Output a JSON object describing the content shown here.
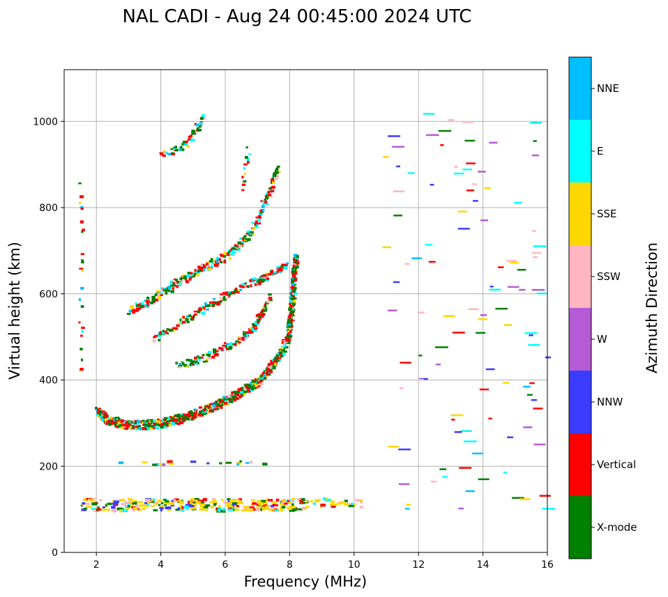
{
  "chart_data": {
    "type": "scatter",
    "title": "NAL CADI - Aug 24 00:45:00 2024 UTC",
    "xlabel": "Frequency (MHz)",
    "ylabel": "Virtual height (km)",
    "xlim": [
      1,
      16
    ],
    "ylim": [
      0,
      1120
    ],
    "xticks": [
      2,
      4,
      6,
      8,
      10,
      12,
      14,
      16
    ],
    "xtick_labels": [
      "2",
      "4",
      "6",
      "8",
      "10",
      "12",
      "14",
      "16"
    ],
    "yticks": [
      0,
      200,
      400,
      600,
      800,
      1000
    ],
    "ytick_labels": [
      "0",
      "200",
      "400",
      "600",
      "800",
      "1000"
    ],
    "grid": true,
    "colorbar": {
      "label": "Azimuth Direction",
      "categories": [
        {
          "name": "X-mode",
          "color": "#008000"
        },
        {
          "name": "Vertical",
          "color": "#ff0000"
        },
        {
          "name": "NNW",
          "color": "#3c3cff"
        },
        {
          "name": "W",
          "color": "#b55bd6"
        },
        {
          "name": "SSW",
          "color": "#ffb6c1"
        },
        {
          "name": "SSE",
          "color": "#ffd700"
        },
        {
          "name": "E",
          "color": "#00ffff"
        },
        {
          "name": "NNE",
          "color": "#00bfff"
        }
      ]
    },
    "traces": [
      {
        "name": "E-layer echoes",
        "x_range": [
          1.5,
          8.5
        ],
        "y_center": 113,
        "y_spread": 14,
        "density": 10
      },
      {
        "name": "E-layer echoes (mid)",
        "x_range": [
          8.5,
          10.2
        ],
        "y_center": 118,
        "y_spread": 10,
        "density": 4
      },
      {
        "name": "F-layer trace",
        "points": [
          [
            2.0,
            330
          ],
          [
            2.3,
            310
          ],
          [
            2.8,
            300
          ],
          [
            3.3,
            298
          ],
          [
            3.8,
            300
          ],
          [
            4.3,
            307
          ],
          [
            4.8,
            318
          ],
          [
            5.3,
            332
          ],
          [
            5.8,
            348
          ],
          [
            6.3,
            368
          ],
          [
            6.7,
            385
          ],
          [
            7.0,
            400
          ],
          [
            7.3,
            425
          ],
          [
            7.6,
            455
          ],
          [
            7.9,
            500
          ],
          [
            8.0,
            550
          ],
          [
            8.05,
            600
          ],
          [
            8.1,
            650
          ],
          [
            8.15,
            690
          ]
        ],
        "density": 8,
        "spread": 10
      },
      {
        "name": "E multiple-hop",
        "x_range": [
          2.5,
          7.5
        ],
        "y_center": 210,
        "y_spread": 4,
        "density": 1
      },
      {
        "name": "2F trace",
        "points": [
          [
            4.5,
            435
          ],
          [
            5.0,
            445
          ],
          [
            5.5,
            460
          ],
          [
            6.0,
            480
          ],
          [
            6.5,
            500
          ],
          [
            6.8,
            520
          ],
          [
            7.0,
            545
          ],
          [
            7.2,
            570
          ],
          [
            7.4,
            600
          ]
        ],
        "density": 3,
        "spread": 8
      },
      {
        "name": "2F upper trace",
        "points": [
          [
            3.8,
            500
          ],
          [
            4.2,
            520
          ],
          [
            4.8,
            545
          ],
          [
            5.3,
            570
          ],
          [
            5.8,
            590
          ],
          [
            6.3,
            610
          ],
          [
            6.8,
            630
          ],
          [
            7.2,
            640
          ],
          [
            7.6,
            655
          ],
          [
            7.9,
            670
          ]
        ],
        "density": 3,
        "spread": 8
      },
      {
        "name": "3F trace",
        "points": [
          [
            3.0,
            565
          ],
          [
            3.5,
            580
          ],
          [
            4.0,
            605
          ],
          [
            4.5,
            630
          ],
          [
            5.0,
            650
          ],
          [
            5.5,
            670
          ],
          [
            6.0,
            690
          ],
          [
            6.4,
            715
          ],
          [
            6.8,
            750
          ],
          [
            7.1,
            800
          ],
          [
            7.4,
            850
          ],
          [
            7.6,
            900
          ]
        ],
        "density": 4,
        "spread": 10
      },
      {
        "name": "4F trace",
        "points": [
          [
            4.0,
            925
          ],
          [
            4.4,
            935
          ],
          [
            4.8,
            955
          ],
          [
            5.1,
            990
          ],
          [
            5.3,
            1015
          ]
        ],
        "density": 2,
        "spread": 8
      },
      {
        "name": "Red upper trace",
        "points": [
          [
            6.5,
            840
          ],
          [
            6.6,
            900
          ],
          [
            6.7,
            945
          ]
        ],
        "density": 1,
        "spread": 6
      },
      {
        "name": "Isolated left column",
        "points": [
          [
            1.5,
            430
          ],
          [
            1.5,
            520
          ],
          [
            1.5,
            660
          ],
          [
            1.5,
            800
          ],
          [
            1.5,
            880
          ]
        ],
        "density": 1,
        "spread": 40
      },
      {
        "name": "Scattered high-frequency echoes",
        "x_range": [
          10.8,
          16
        ],
        "y_range": [
          90,
          1020
        ],
        "density": 110
      }
    ]
  }
}
